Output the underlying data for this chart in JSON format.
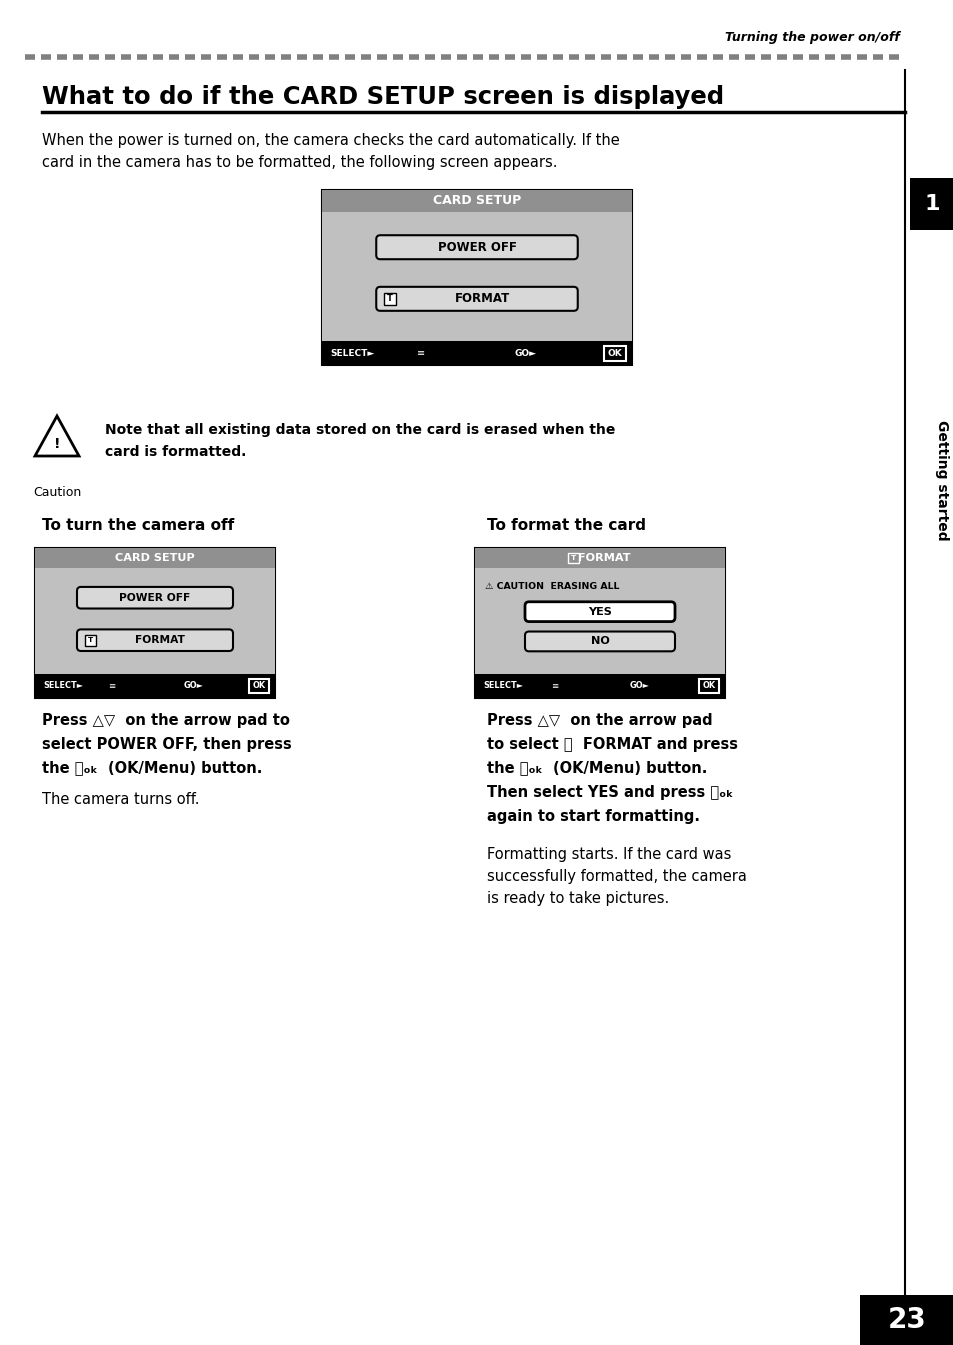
{
  "bg_color": "#ffffff",
  "page_number": "23",
  "header_italic": "Turning the power on/off",
  "title": "What to do if the CARD SETUP screen is displayed",
  "sidebar_text": "Getting started",
  "sidebar_number": "1",
  "dash_color": "#808080",
  "screen_bg": "#c0c0c0",
  "screen_header_bg": "#909090",
  "screen_statusbar_bg": "#000000",
  "button_bg": "#d8d8d8",
  "yes_button_bg": "#ffffff",
  "left_section_title": "To turn the camera off",
  "right_section_title": "To format the card"
}
